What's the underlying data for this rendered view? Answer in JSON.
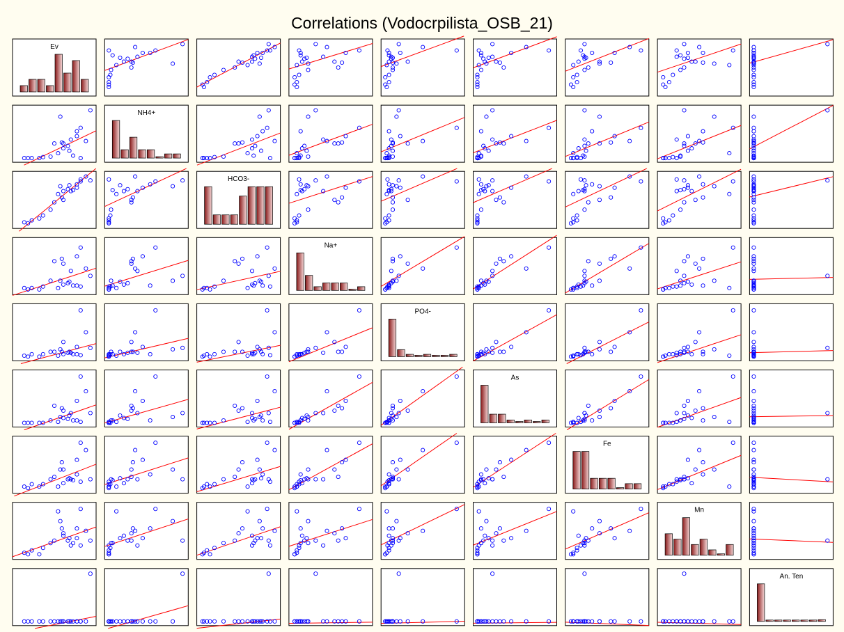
{
  "chart_data": {
    "type": "scatter-matrix",
    "title": "Correlations (Vodocrpilista_OSB_21)",
    "variables": [
      "Ev",
      "NH4+",
      "HCO3-",
      "Na+",
      "PO4-",
      "As",
      "Fe",
      "Mn",
      "An. Ten"
    ],
    "samples": {
      "Ev": [
        0.2,
        0.1,
        0.35,
        0.45,
        0.62,
        0.5,
        0.6,
        0.72,
        0.8,
        0.75,
        0.55,
        0.62,
        0.68,
        0.3,
        0.15,
        0.7,
        0.85,
        0.8,
        0.58,
        0.85,
        0.92,
        0.98
      ],
      "NH4+": [
        0.0,
        0.0,
        0.02,
        0.03,
        0.3,
        0.3,
        0.32,
        0.38,
        0.45,
        0.05,
        0.1,
        0.2,
        0.25,
        0.0,
        0.0,
        0.15,
        0.62,
        0.55,
        0.85,
        0.0,
        0.35,
        0.98
      ],
      "HCO3-": [
        0.08,
        0.04,
        0.18,
        0.3,
        0.5,
        0.45,
        0.55,
        0.68,
        0.75,
        0.7,
        0.62,
        0.68,
        0.72,
        0.12,
        0.02,
        0.8,
        0.88,
        0.82,
        0.78,
        0.92,
        0.98,
        0.9
      ],
      "Na+": [
        0.05,
        0.05,
        0.08,
        0.2,
        0.55,
        0.6,
        0.65,
        0.4,
        0.7,
        0.1,
        0.05,
        0.12,
        0.15,
        0.02,
        0.02,
        0.18,
        0.88,
        0.1,
        0.2,
        0.08,
        0.45,
        0.3
      ],
      "PO4-": [
        0.05,
        0.02,
        0.05,
        0.1,
        0.3,
        0.1,
        0.1,
        0.08,
        0.2,
        0.05,
        0.02,
        0.05,
        0.08,
        0.0,
        0.0,
        0.1,
        0.95,
        0.05,
        0.15,
        0.03,
        0.5,
        0.18
      ],
      "As": [
        0.0,
        0.0,
        0.0,
        0.05,
        0.25,
        0.35,
        0.3,
        0.2,
        0.45,
        0.05,
        0.02,
        0.1,
        0.08,
        0.0,
        0.0,
        0.15,
        0.95,
        0.05,
        0.12,
        0.02,
        0.65,
        0.2
      ],
      "Fe": [
        0.1,
        0.05,
        0.1,
        0.2,
        0.4,
        0.25,
        0.55,
        0.2,
        0.6,
        0.18,
        0.05,
        0.12,
        0.2,
        0.05,
        0.02,
        0.22,
        0.95,
        0.3,
        0.4,
        0.15,
        0.8,
        0.2
      ],
      "Mn": [
        0.1,
        0.05,
        0.15,
        0.25,
        0.45,
        0.3,
        0.55,
        0.2,
        0.35,
        0.25,
        0.9,
        0.4,
        0.3,
        0.02,
        0.02,
        0.35,
        0.95,
        0.55,
        0.7,
        0.2,
        0.5,
        0.3
      ],
      "An. Ten": [
        0.0,
        0.0,
        0.0,
        0.0,
        0.0,
        0.0,
        0.0,
        0.0,
        0.0,
        0.0,
        0.0,
        0.0,
        0.0,
        0.0,
        0.0,
        0.0,
        0.0,
        0.0,
        0.0,
        0.0,
        0.0,
        0.98
      ]
    },
    "histogram_bins": 8,
    "diagonal": "histogram",
    "off_diagonal": "scatter with linear fit",
    "grid": false,
    "colors": {
      "background": "#fffdf0",
      "panel": "#ffffff",
      "points": "#0000ff",
      "fit_line": "#ff0000",
      "bar_dark": "#8a1a1a",
      "bar_light": "#f5d8d8"
    }
  }
}
